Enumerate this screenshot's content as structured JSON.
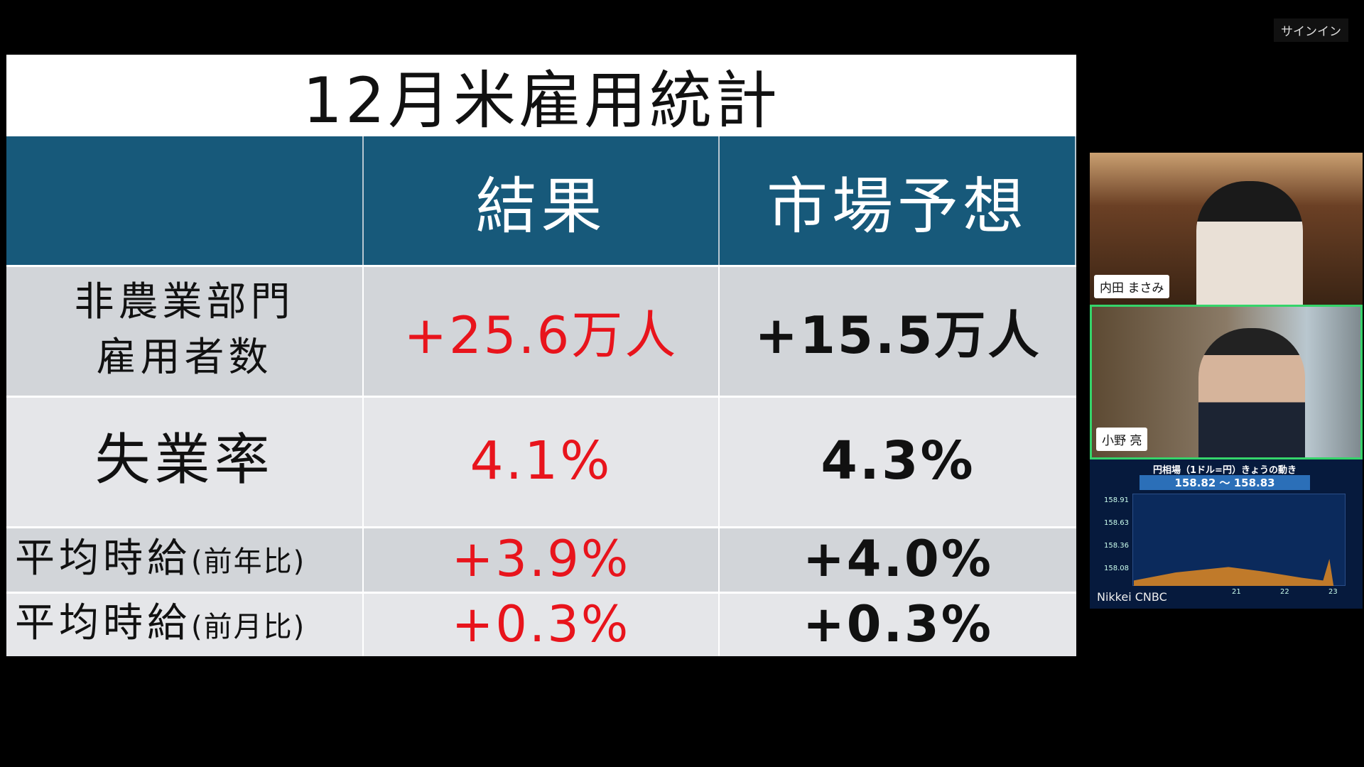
{
  "top_bar": {
    "sign_in": "サインイン"
  },
  "slide": {
    "title": "12月米雇用統計",
    "columns": [
      "結果",
      "市場予想"
    ],
    "rows": [
      {
        "label": [
          "非農業部門",
          "雇用者数"
        ],
        "result": "+25.6万人",
        "forecast": "+15.5万人"
      },
      {
        "label": [
          "失業率"
        ],
        "result": "4.1%",
        "forecast": "4.3%"
      },
      {
        "label": [
          "平均時給"
        ],
        "note": "(前年比)",
        "result": "+3.9%",
        "forecast": "+4.0%"
      },
      {
        "label": [
          "平均時給"
        ],
        "note": "(前月比)",
        "result": "+0.3%",
        "forecast": "+0.3%"
      }
    ]
  },
  "participants": [
    {
      "name": "内田 まさみ"
    },
    {
      "name": "小野 亮"
    }
  ],
  "market_tile": {
    "title": "円相場（1ドル=円）きょうの動き",
    "range": "158.82 ～ 158.83",
    "yticks": [
      "158.91",
      "158.63",
      "158.36",
      "158.08"
    ],
    "xticks": [
      "21",
      "22",
      "23"
    ],
    "source": "Nikkei CNBC"
  }
}
